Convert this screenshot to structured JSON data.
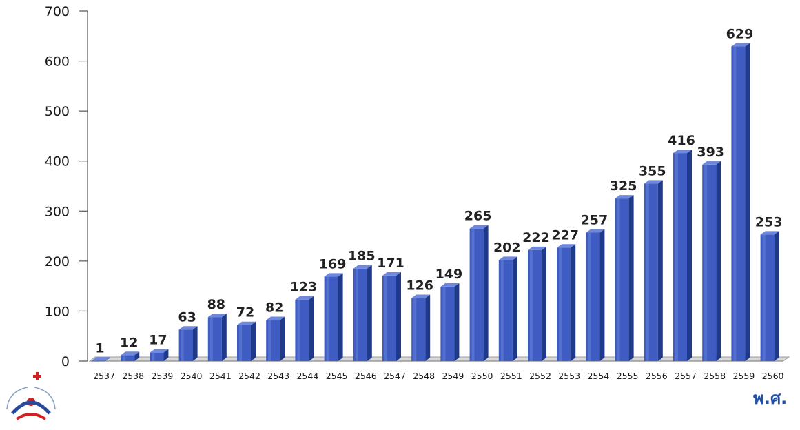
{
  "chart_data": {
    "type": "bar",
    "categories": [
      "2537",
      "2538",
      "2539",
      "2540",
      "2541",
      "2542",
      "2543",
      "2544",
      "2545",
      "2546",
      "2547",
      "2548",
      "2549",
      "2550",
      "2551",
      "2552",
      "2553",
      "2554",
      "2555",
      "2556",
      "2557",
      "2558",
      "2559",
      "2560"
    ],
    "values": [
      1,
      12,
      17,
      63,
      88,
      72,
      82,
      123,
      169,
      185,
      171,
      126,
      149,
      265,
      202,
      222,
      227,
      257,
      325,
      355,
      416,
      393,
      629,
      253
    ],
    "yticks": [
      0,
      100,
      200,
      300,
      400,
      500,
      600,
      700
    ],
    "ylim": [
      0,
      700
    ],
    "xlabel": "พ.ศ.",
    "ylabel": "",
    "title": "",
    "grid": false,
    "legend": "none",
    "colors": {
      "bar_front": "#3e5cc2",
      "bar_side": "#1f3a8a",
      "bar_top": "#6f88dc",
      "axis": "#555555",
      "floor": "#9a9a9a",
      "xunit": "#1f4fa8"
    }
  },
  "logo": {
    "icon": "red-cross-org-logo"
  }
}
